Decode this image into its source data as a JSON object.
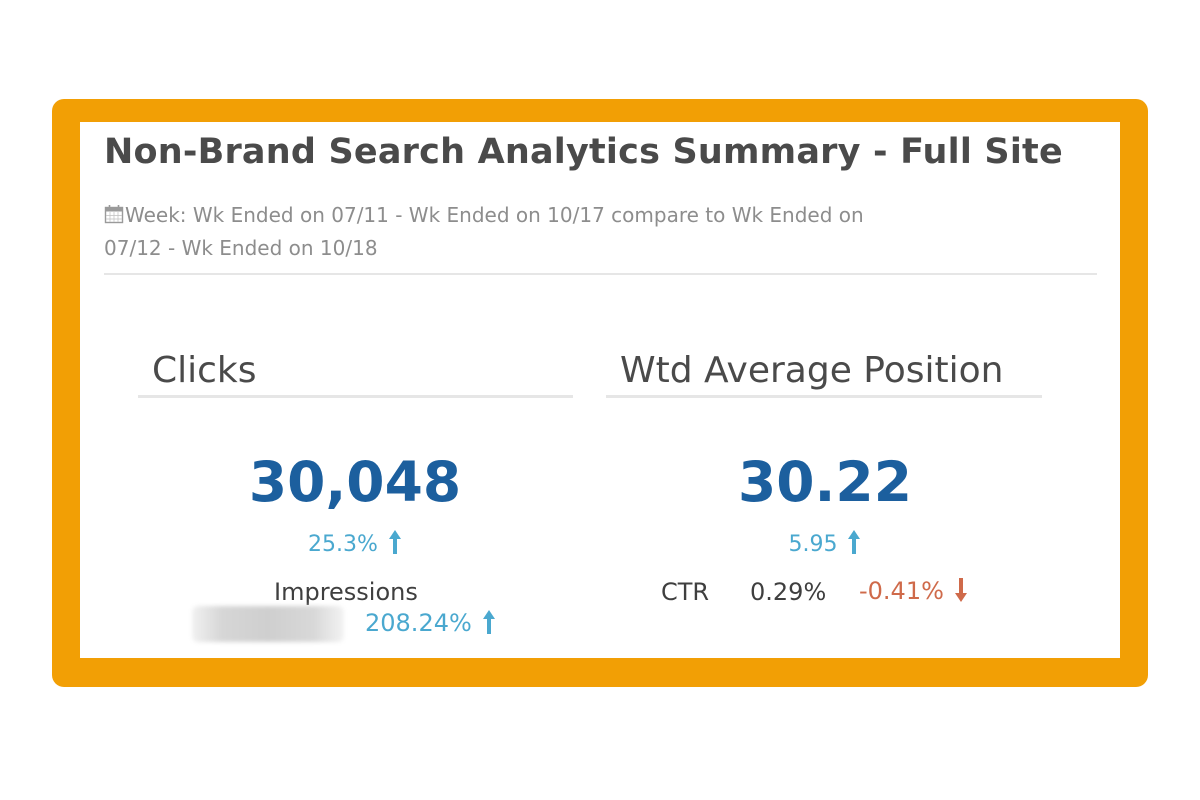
{
  "card": {
    "title": "Non-Brand Search Analytics Summary - Full Site",
    "date_range": "Week: Wk Ended on 07/11 - Wk Ended on 10/17 compare to Wk Ended on 07/12 - Wk Ended on 10/18",
    "date_icon": "calendar-icon"
  },
  "clicks": {
    "heading": "Clicks",
    "value": "30,048",
    "change": "25.3%",
    "change_direction": "up",
    "secondary_label": "Impressions",
    "secondary_change": "208.24%",
    "secondary_change_direction": "up"
  },
  "position": {
    "heading": "Wtd Average Position",
    "value": "30.22",
    "change": "5.95",
    "change_direction": "up",
    "secondary_label": "CTR",
    "secondary_value": "0.29%",
    "secondary_change": "-0.41%",
    "secondary_change_direction": "down"
  },
  "colors": {
    "frame": "#f29f05",
    "value_blue": "#1c5f9e",
    "up": "#4aa8cf",
    "down": "#cf6a4a"
  }
}
